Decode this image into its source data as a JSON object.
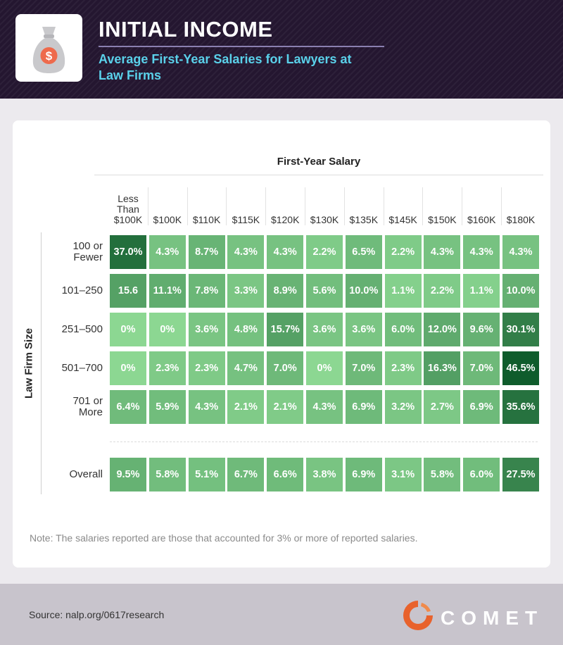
{
  "header": {
    "title": "INITIAL INCOME",
    "subtitle": "Average First-Year Salaries for Lawyers at Law Firms",
    "icon": "money-bag-icon",
    "icon_symbol": "$"
  },
  "colors": {
    "header_bg": "#241630",
    "subtitle": "#5ad1ea",
    "scale_light": "#8cd792",
    "scale_dark": "#0f5c2c",
    "brand_orange": "#e8622c"
  },
  "chart_data": {
    "type": "heatmap",
    "title": "First-Year Salary",
    "xlabel": "First-Year Salary",
    "ylabel": "Law Firm Size",
    "columns": [
      "Less\nThan\n$100K",
      "$100K",
      "$110K",
      "$115K",
      "$120K",
      "$130K",
      "$135K",
      "$145K",
      "$150K",
      "$160K",
      "$180K"
    ],
    "rows": [
      {
        "label": "100 or\nFewer",
        "values": [
          37.0,
          4.3,
          8.7,
          4.3,
          4.3,
          2.2,
          6.5,
          2.2,
          4.3,
          4.3,
          4.3
        ],
        "labels": [
          "37.0%",
          "4.3%",
          "8.7%",
          "4.3%",
          "4.3%",
          "2.2%",
          "6.5%",
          "2.2%",
          "4.3%",
          "4.3%",
          "4.3%"
        ]
      },
      {
        "label": "101–250",
        "values": [
          15.6,
          11.1,
          7.8,
          3.3,
          8.9,
          5.6,
          10.0,
          1.1,
          2.2,
          1.1,
          10.0
        ],
        "labels": [
          "15.6",
          "11.1%",
          "7.8%",
          "3.3%",
          "8.9%",
          "5.6%",
          "10.0%",
          "1.1%",
          "2.2%",
          "1.1%",
          "10.0%"
        ]
      },
      {
        "label": "251–500",
        "values": [
          0,
          0,
          3.6,
          4.8,
          15.7,
          3.6,
          3.6,
          6.0,
          12.0,
          9.6,
          30.1
        ],
        "labels": [
          "0%",
          "0%",
          "3.6%",
          "4.8%",
          "15.7%",
          "3.6%",
          "3.6%",
          "6.0%",
          "12.0%",
          "9.6%",
          "30.1%"
        ]
      },
      {
        "label": "501–700",
        "values": [
          0,
          2.3,
          2.3,
          4.7,
          7.0,
          0,
          7.0,
          2.3,
          16.3,
          7.0,
          46.5
        ],
        "labels": [
          "0%",
          "2.3%",
          "2.3%",
          "4.7%",
          "7.0%",
          "0%",
          "7.0%",
          "2.3%",
          "16.3%",
          "7.0%",
          "46.5%"
        ]
      },
      {
        "label": "701 or\nMore",
        "values": [
          6.4,
          5.9,
          4.3,
          2.1,
          2.1,
          4.3,
          6.9,
          3.2,
          2.7,
          6.9,
          35.6
        ],
        "labels": [
          "6.4%",
          "5.9%",
          "4.3%",
          "2.1%",
          "2.1%",
          "4.3%",
          "6.9%",
          "3.2%",
          "2.7%",
          "6.9%",
          "35.6%"
        ]
      },
      {
        "label": "Overall",
        "values": [
          9.5,
          5.8,
          5.1,
          6.7,
          6.6,
          3.8,
          6.9,
          3.1,
          5.8,
          6.0,
          27.5
        ],
        "labels": [
          "9.5%",
          "5.8%",
          "5.1%",
          "6.7%",
          "6.6%",
          "3.8%",
          "6.9%",
          "3.1%",
          "5.8%",
          "6.0%",
          "27.5%"
        ]
      }
    ]
  },
  "note": "Note: The salaries reported are those that accounted for 3% or more of reported salaries.",
  "footer": {
    "source": "Source: nalp.org/0617research",
    "brand": "COMET"
  }
}
